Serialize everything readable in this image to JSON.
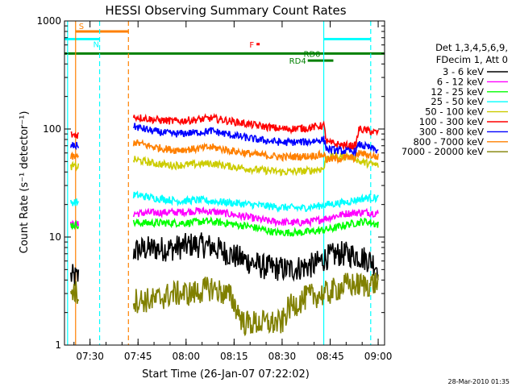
{
  "chart_data": {
    "type": "line",
    "title": "HESSI Observing Summary Count Rates",
    "xlabel": "Start Time (26-Jan-07 07:22:02)",
    "ylabel": "Count Rate (s⁻¹ detector⁻¹)",
    "y_scale": "log",
    "ylim": [
      1,
      1000
    ],
    "xlim": [
      "07:22:02",
      "09:02:00"
    ],
    "x_ticks": [
      "07:30",
      "07:45",
      "08:00",
      "08:15",
      "08:30",
      "08:45",
      "09:00"
    ],
    "y_ticks": [
      "1",
      "10",
      "100",
      "1000"
    ],
    "legend_header": [
      "Det 1,3,4,5,6,9,",
      "FDecim 1, Att 0"
    ],
    "legend_position": "right",
    "timestamp": "28-Mar-2010 01:35",
    "series": [
      {
        "name": "3 - 6 keV",
        "color": "#000000",
        "data": [
          [
            "07:24",
            4.3
          ],
          [
            "07:26",
            4.2
          ],
          [
            "07:44",
            7.5
          ],
          [
            "07:48",
            7.8
          ],
          [
            "07:55",
            7.8
          ],
          [
            "08:02",
            8.5
          ],
          [
            "08:08",
            8.2
          ],
          [
            "08:16",
            6.5
          ],
          [
            "08:24",
            5.3
          ],
          [
            "08:32",
            5.0
          ],
          [
            "08:40",
            5.5
          ],
          [
            "08:44",
            6.5
          ],
          [
            "08:48",
            7.0
          ],
          [
            "08:53",
            6.8
          ],
          [
            "08:58",
            6.0
          ],
          [
            "09:00",
            5.2
          ]
        ]
      },
      {
        "name": "6 - 12 keV",
        "color": "#ff00ff",
        "data": [
          [
            "07:24",
            13
          ],
          [
            "07:26",
            13
          ],
          [
            "07:44",
            16.5
          ],
          [
            "07:50",
            16.8
          ],
          [
            "07:58",
            17
          ],
          [
            "08:04",
            17.5
          ],
          [
            "08:10",
            17
          ],
          [
            "08:18",
            15.5
          ],
          [
            "08:26",
            14
          ],
          [
            "08:34",
            13.5
          ],
          [
            "08:40",
            14
          ],
          [
            "08:44",
            15
          ],
          [
            "08:50",
            16.5
          ],
          [
            "08:56",
            17
          ],
          [
            "09:00",
            16.5
          ]
        ]
      },
      {
        "name": "12 - 25 keV",
        "color": "#00ff00",
        "data": [
          [
            "07:24",
            13
          ],
          [
            "07:26",
            13
          ],
          [
            "07:44",
            13.5
          ],
          [
            "07:52",
            13.5
          ],
          [
            "08:00",
            13.5
          ],
          [
            "08:06",
            14
          ],
          [
            "08:12",
            13.5
          ],
          [
            "08:20",
            12.5
          ],
          [
            "08:28",
            11
          ],
          [
            "08:36",
            11
          ],
          [
            "08:42",
            11.5
          ],
          [
            "08:46",
            12
          ],
          [
            "08:50",
            13
          ],
          [
            "08:56",
            14
          ],
          [
            "09:00",
            13
          ]
        ]
      },
      {
        "name": "25 - 50 keV",
        "color": "#00ffff",
        "data": [
          [
            "07:24",
            21
          ],
          [
            "07:26",
            21
          ],
          [
            "07:44",
            24.5
          ],
          [
            "07:50",
            23
          ],
          [
            "07:58",
            21.5
          ],
          [
            "08:04",
            22
          ],
          [
            "08:12",
            21
          ],
          [
            "08:20",
            20
          ],
          [
            "08:28",
            19
          ],
          [
            "08:36",
            18.5
          ],
          [
            "08:42",
            19.5
          ],
          [
            "08:44",
            20
          ],
          [
            "08:50",
            21
          ],
          [
            "08:56",
            23
          ],
          [
            "09:00",
            23
          ]
        ]
      },
      {
        "name": "50 - 100 keV",
        "color": "#cccc00",
        "data": [
          [
            "07:24",
            45
          ],
          [
            "07:26",
            45
          ],
          [
            "07:44",
            52
          ],
          [
            "07:50",
            48
          ],
          [
            "07:56",
            46
          ],
          [
            "08:02",
            47
          ],
          [
            "08:08",
            48
          ],
          [
            "08:14",
            45
          ],
          [
            "08:22",
            42
          ],
          [
            "08:30",
            40
          ],
          [
            "08:38",
            41
          ],
          [
            "08:43",
            43
          ],
          [
            "08:44",
            55
          ],
          [
            "08:50",
            56
          ],
          [
            "08:53",
            54
          ],
          [
            "08:54",
            50
          ],
          [
            "09:00",
            46
          ]
        ]
      },
      {
        "name": "100 - 300 keV",
        "color": "#ff0000",
        "data": [
          [
            "07:24",
            88
          ],
          [
            "07:26",
            88
          ],
          [
            "07:44",
            130
          ],
          [
            "07:50",
            122
          ],
          [
            "07:56",
            118
          ],
          [
            "08:02",
            121
          ],
          [
            "08:08",
            126
          ],
          [
            "08:14",
            118
          ],
          [
            "08:22",
            108
          ],
          [
            "08:30",
            100
          ],
          [
            "08:38",
            102
          ],
          [
            "08:43",
            108
          ],
          [
            "08:44",
            75
          ],
          [
            "08:50",
            70
          ],
          [
            "08:53",
            70
          ],
          [
            "08:54",
            100
          ],
          [
            "09:00",
            92
          ]
        ]
      },
      {
        "name": "300 - 800 keV",
        "color": "#0000ff",
        "data": [
          [
            "07:24",
            70
          ],
          [
            "07:26",
            70
          ],
          [
            "07:44",
            105
          ],
          [
            "07:50",
            95
          ],
          [
            "07:56",
            90
          ],
          [
            "08:02",
            92
          ],
          [
            "08:08",
            96
          ],
          [
            "08:14",
            88
          ],
          [
            "08:22",
            80
          ],
          [
            "08:30",
            75
          ],
          [
            "08:38",
            76
          ],
          [
            "08:43",
            80
          ],
          [
            "08:44",
            65
          ],
          [
            "08:50",
            62
          ],
          [
            "08:53",
            62
          ],
          [
            "08:54",
            72
          ],
          [
            "09:00",
            63
          ]
        ]
      },
      {
        "name": "800 - 7000 keV",
        "color": "#ff8000",
        "data": [
          [
            "07:24",
            55
          ],
          [
            "07:26",
            55
          ],
          [
            "07:44",
            75
          ],
          [
            "07:50",
            68
          ],
          [
            "07:56",
            64
          ],
          [
            "08:02",
            65
          ],
          [
            "08:08",
            68
          ],
          [
            "08:14",
            63
          ],
          [
            "08:22",
            58
          ],
          [
            "08:30",
            55
          ],
          [
            "08:38",
            56
          ],
          [
            "08:43",
            58
          ],
          [
            "08:44",
            52
          ],
          [
            "08:50",
            54
          ],
          [
            "08:53",
            54
          ],
          [
            "08:54",
            60
          ],
          [
            "09:00",
            55
          ]
        ]
      },
      {
        "name": "7000 - 20000 keV",
        "color": "#808000",
        "data": [
          [
            "07:24",
            3.2
          ],
          [
            "07:26",
            3.0
          ],
          [
            "07:44",
            2.6
          ],
          [
            "07:50",
            2.6
          ],
          [
            "07:56",
            3.0
          ],
          [
            "08:02",
            3.0
          ],
          [
            "08:08",
            3.4
          ],
          [
            "08:14",
            2.8
          ],
          [
            "08:18",
            1.6
          ],
          [
            "08:30",
            1.6
          ],
          [
            "08:32",
            2.2
          ],
          [
            "08:38",
            2.8
          ],
          [
            "08:44",
            3.0
          ],
          [
            "08:50",
            3.6
          ],
          [
            "08:56",
            3.6
          ],
          [
            "09:00",
            3.8
          ]
        ]
      }
    ],
    "vertical_markers": [
      {
        "time": "07:23:00",
        "color": "#00ffff",
        "style": "solid"
      },
      {
        "time": "07:25:30",
        "color": "#ff8000",
        "style": "solid"
      },
      {
        "time": "07:33:00",
        "color": "#00ffff",
        "style": "dashed"
      },
      {
        "time": "07:42:00",
        "color": "#ff8000",
        "style": "dashed"
      },
      {
        "time": "08:43:00",
        "color": "#00ffff",
        "style": "solid"
      },
      {
        "time": "08:57:40",
        "color": "#00ffff",
        "style": "dashed"
      }
    ],
    "flag_bars": [
      {
        "label": "S",
        "color": "#ff8000",
        "start": "07:25:30",
        "end": "07:42:00",
        "y": 800
      },
      {
        "label": "N",
        "color": "#00ffff",
        "start": "07:22:02",
        "end": "07:33:00",
        "y": 680
      },
      {
        "label": "",
        "color": "#00ffff",
        "start": "08:43:00",
        "end": "08:57:40",
        "y": 680
      },
      {
        "label": "F",
        "color": "#ff0000",
        "start": "08:22:00",
        "end": "08:23:00",
        "y": 610
      },
      {
        "label": "RD0",
        "color": "#008000",
        "start": "07:22:02",
        "end": "09:02:00",
        "y": 500
      },
      {
        "label": "RD4",
        "color": "#008000",
        "start": "08:38:00",
        "end": "08:46:00",
        "y": 430
      }
    ]
  }
}
